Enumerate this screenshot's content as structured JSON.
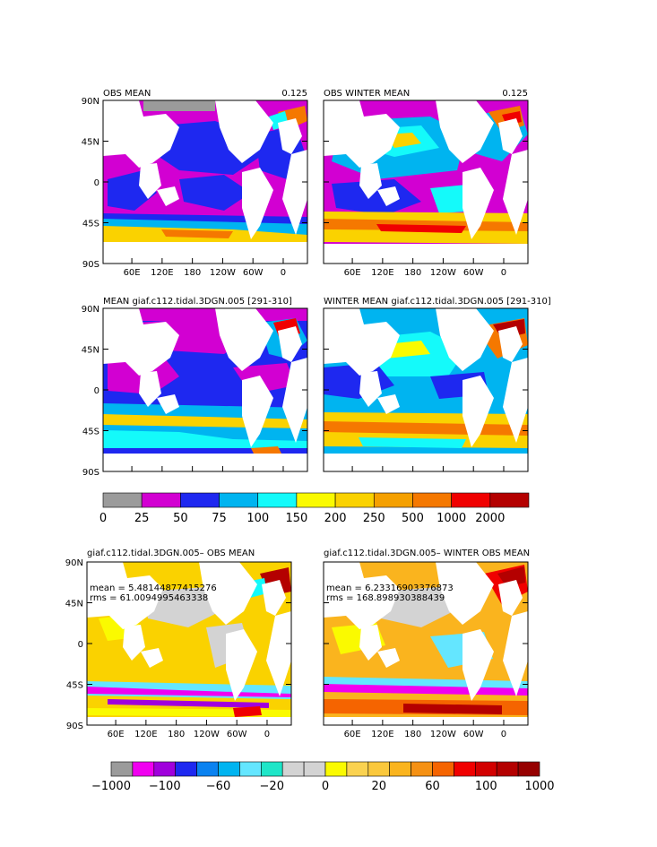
{
  "panels": [
    {
      "id": "obs-mean",
      "title_left": "OBS MEAN",
      "title_right": "0.125",
      "stats": []
    },
    {
      "id": "obs-winter-mean",
      "title_left": "OBS WINTER MEAN",
      "title_right": "0.125",
      "stats": []
    },
    {
      "id": "model-mean",
      "title_left": "MEAN giaf.c112.tidal.3DGN.005 [291-310]",
      "title_right": "",
      "stats": []
    },
    {
      "id": "model-winter-mean",
      "title_left": "WINTER MEAN giaf.c112.tidal.3DGN.005 [291-310]",
      "title_right": "",
      "stats": []
    },
    {
      "id": "diff-mean",
      "title_left": "giaf.c112.tidal.3DGN.005– OBS MEAN",
      "title_right": "",
      "stats": [
        "mean = 5.48144877415276",
        "rms = 61.0094995463338"
      ]
    },
    {
      "id": "diff-winter-mean",
      "title_left": "giaf.c112.tidal.3DGN.005– WINTER OBS MEAN",
      "title_right": "",
      "stats": [
        "mean = 6.23316903376873",
        "rms = 168.898930388439"
      ]
    }
  ],
  "lat_ticks": [
    "90N",
    "45N",
    "0",
    "45S",
    "90S"
  ],
  "lon_ticks": [
    "60E",
    "120E",
    "180",
    "120W",
    "60W",
    "0"
  ],
  "colorbar_top": {
    "colors": [
      "#9b9b9b",
      "#d200d2",
      "#1e28f0",
      "#00b4f0",
      "#14fafa",
      "#fafa00",
      "#fad200",
      "#f5a000",
      "#f57800",
      "#f00000",
      "#b40000"
    ],
    "labels": [
      "0",
      "25",
      "50",
      "75",
      "100",
      "150",
      "200",
      "250",
      "500",
      "1000",
      "2000"
    ]
  },
  "colorbar_bottom": {
    "colors": [
      "#9b9b9b",
      "#f000f0",
      "#a000dc",
      "#1e28f0",
      "#0a82f0",
      "#00b4f0",
      "#64e6ff",
      "#1ee6c8",
      "#d3d3d3",
      "#d3d3d3",
      "#fafa00",
      "#fad250",
      "#fac83c",
      "#fab41e",
      "#f59114",
      "#f56400",
      "#f00000",
      "#d20000",
      "#b40000",
      "#960000"
    ],
    "labels": [
      "−1000",
      "−100",
      "−60",
      "−20",
      "0",
      "20",
      "60",
      "100",
      "1000"
    ]
  },
  "colors": {
    "land": "#ffffff",
    "obs_mean_bg": "#d200d2",
    "model_mean_bg": "#1e28f0",
    "model_winter_bg": "#00b4f0",
    "diff_bg": "#fad200"
  }
}
